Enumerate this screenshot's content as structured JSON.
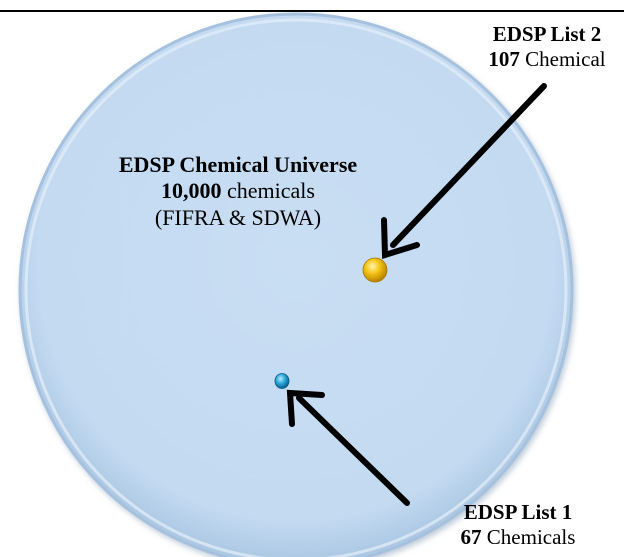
{
  "universe": {
    "title": "EDSP Chemical Universe",
    "count": "10,000",
    "count_suffix": "chemicals",
    "sources": "(FIFRA & SDWA)"
  },
  "list2": {
    "title": "EDSP List 2",
    "count": "107",
    "count_suffix": "Chemical"
  },
  "list1": {
    "title": "EDSP List 1",
    "count": "67",
    "count_suffix": "Chemicals"
  },
  "colors": {
    "universe_fill": "#c5dcf2",
    "universe_rim": "#a9c4de",
    "list2_ball": "#f2b705",
    "list1_ball": "#1fa3d8",
    "arrow": "#000000"
  }
}
